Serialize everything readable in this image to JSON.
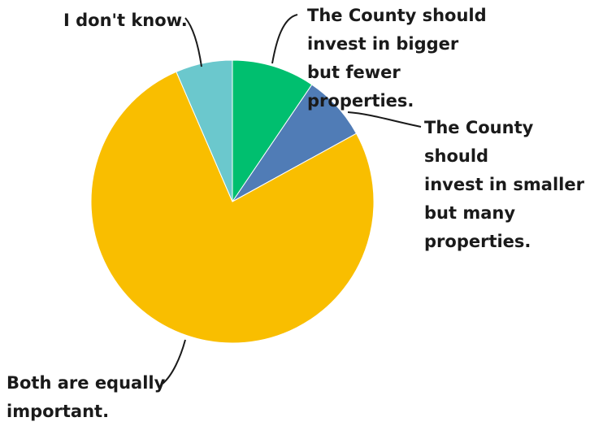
{
  "chart_data": {
    "type": "pie",
    "title": "",
    "slices": [
      {
        "label": "The County should\ninvest in bigger\nbut fewer\nproperties.",
        "value": 9.5,
        "color": "#00BF6F"
      },
      {
        "label": "The County should\ninvest in smaller\nbut many\nproperties.",
        "value": 7.5,
        "color": "#507CB6"
      },
      {
        "label": "Both are equally\nimportant.",
        "value": 76.5,
        "color": "#F9BE00"
      },
      {
        "label": "I don't know.",
        "value": 6.5,
        "color": "#6BC8CD"
      }
    ],
    "start_angle": "12 o'clock",
    "direction": "clockwise",
    "legend": "none",
    "labels": "outside with leader lines"
  }
}
